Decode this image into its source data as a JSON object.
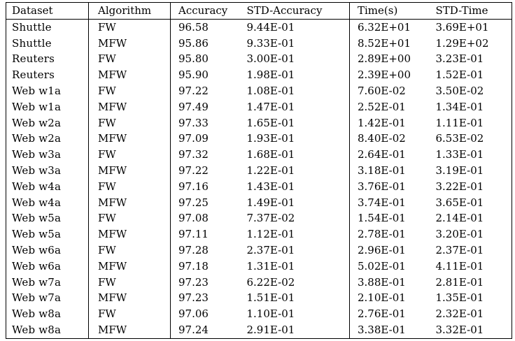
{
  "table": {
    "headers": [
      "Dataset",
      "Algorithm",
      "Accuracy",
      "STD-Accuracy",
      "Time(s)",
      "STD-Time"
    ],
    "rows": [
      [
        "Shuttle",
        "FW",
        "96.58",
        "9.44E-01",
        "6.32E+01",
        "3.69E+01"
      ],
      [
        "Shuttle",
        "MFW",
        "95.86",
        "9.33E-01",
        "8.52E+01",
        "1.29E+02"
      ],
      [
        "Reuters",
        "FW",
        "95.80",
        "3.00E-01",
        "2.89E+00",
        "3.23E-01"
      ],
      [
        "Reuters",
        "MFW",
        "95.90",
        "1.98E-01",
        "2.39E+00",
        "1.52E-01"
      ],
      [
        "Web w1a",
        "FW",
        "97.22",
        "1.08E-01",
        "7.60E-02",
        "3.50E-02"
      ],
      [
        "Web w1a",
        "MFW",
        "97.49",
        "1.47E-01",
        "2.52E-01",
        "1.34E-01"
      ],
      [
        "Web w2a",
        "FW",
        "97.33",
        "1.65E-01",
        "1.42E-01",
        "1.11E-01"
      ],
      [
        "Web w2a",
        "MFW",
        "97.09",
        "1.93E-01",
        "8.40E-02",
        "6.53E-02"
      ],
      [
        "Web w3a",
        "FW",
        "97.32",
        "1.68E-01",
        "2.64E-01",
        "1.33E-01"
      ],
      [
        "Web w3a",
        "MFW",
        "97.22",
        "1.22E-01",
        "3.18E-01",
        "3.19E-01"
      ],
      [
        "Web w4a",
        "FW",
        "97.16",
        "1.43E-01",
        "3.76E-01",
        "3.22E-01"
      ],
      [
        "Web w4a",
        "MFW",
        "97.25",
        "1.49E-01",
        "3.74E-01",
        "3.65E-01"
      ],
      [
        "Web w5a",
        "FW",
        "97.08",
        "7.37E-02",
        "1.54E-01",
        "2.14E-01"
      ],
      [
        "Web w5a",
        "MFW",
        "97.11",
        "1.12E-01",
        "2.78E-01",
        "3.20E-01"
      ],
      [
        "Web w6a",
        "FW",
        "97.28",
        "2.37E-01",
        "2.96E-01",
        "2.37E-01"
      ],
      [
        "Web w6a",
        "MFW",
        "97.18",
        "1.31E-01",
        "5.02E-01",
        "4.11E-01"
      ],
      [
        "Web w7a",
        "FW",
        "97.23",
        "6.22E-02",
        "3.88E-01",
        "2.81E-01"
      ],
      [
        "Web w7a",
        "MFW",
        "97.23",
        "1.51E-01",
        "2.10E-01",
        "1.35E-01"
      ],
      [
        "Web w8a",
        "FW",
        "97.06",
        "1.10E-01",
        "2.76E-01",
        "2.32E-01"
      ],
      [
        "Web w8a",
        "MFW",
        "97.24",
        "2.91E-01",
        "3.38E-01",
        "3.32E-01"
      ]
    ]
  }
}
